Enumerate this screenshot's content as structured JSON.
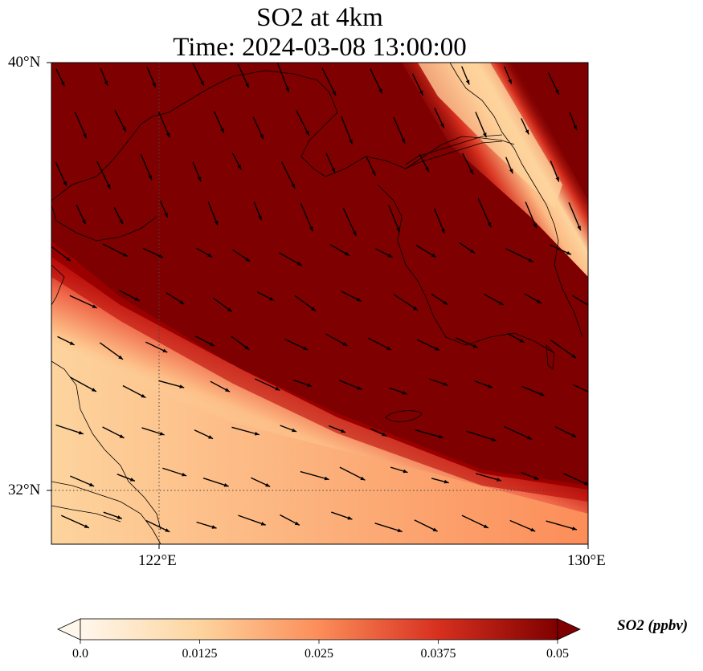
{
  "title": {
    "line1": "SO2 at 4km",
    "line2": "Time: 2024-03-08 13:00:00"
  },
  "map": {
    "lat_labels": [
      "40°N",
      "32°N"
    ],
    "lon_labels": [
      "122°E",
      "130°E"
    ],
    "extent": {
      "lon_min": 120,
      "lon_max": 130,
      "lat_min": 31,
      "lat_max": 40
    },
    "gridlines": {
      "lons": [
        122,
        130
      ],
      "lats": [
        32,
        40
      ],
      "style": "dotted"
    },
    "field": "SO2 concentration at 4 km",
    "wind_vectors": true,
    "wind_direction": "northwest to southeast",
    "coastlines": true
  },
  "colorbar": {
    "label": "SO2 (ppbv)",
    "ticks": [
      "0.0",
      "0.0125",
      "0.025",
      "0.0375",
      "0.05"
    ],
    "min": 0.0,
    "max": 0.05,
    "colormap": "OrRd",
    "extend": "both",
    "colors": [
      "#fff7ec",
      "#fdd49e",
      "#fc8d59",
      "#d7301f",
      "#7f0000"
    ]
  }
}
